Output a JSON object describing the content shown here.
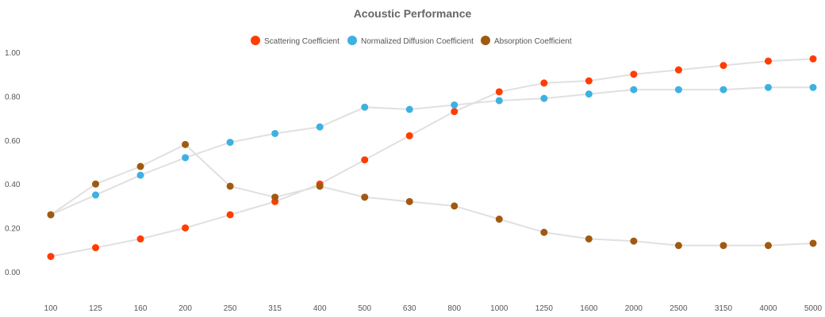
{
  "chart_data": {
    "type": "line",
    "title": "Acoustic Performance",
    "xlabel": "",
    "ylabel": "",
    "categories": [
      "100",
      "125",
      "160",
      "200",
      "250",
      "315",
      "400",
      "500",
      "630",
      "800",
      "1000",
      "1250",
      "1600",
      "2000",
      "2500",
      "3150",
      "4000",
      "5000"
    ],
    "y_ticks": [
      "0.00",
      "0.20",
      "0.40",
      "0.60",
      "0.80",
      "1.00"
    ],
    "ylim": [
      0,
      1.0
    ],
    "grid": false,
    "legend_position": "top",
    "line_color": "#e0e0e0",
    "series": [
      {
        "name": "Scattering Coefficient",
        "color": "#ff3d00",
        "values": [
          0.07,
          0.11,
          0.15,
          0.2,
          0.26,
          0.32,
          0.4,
          0.51,
          0.62,
          0.73,
          0.82,
          0.86,
          0.87,
          0.9,
          0.92,
          0.94,
          0.96,
          0.97
        ]
      },
      {
        "name": "Normalized Diffusion Coefficient",
        "color": "#3db1e2",
        "values": [
          0.26,
          0.35,
          0.44,
          0.52,
          0.59,
          0.63,
          0.66,
          0.75,
          0.74,
          0.76,
          0.78,
          0.79,
          0.81,
          0.83,
          0.83,
          0.83,
          0.84,
          0.84
        ]
      },
      {
        "name": "Absorption Coefficient",
        "color": "#a05a10",
        "values": [
          0.26,
          0.4,
          0.48,
          0.58,
          0.39,
          0.34,
          0.39,
          0.34,
          0.32,
          0.3,
          0.24,
          0.18,
          0.15,
          0.14,
          0.12,
          0.12,
          0.12,
          0.13
        ]
      }
    ]
  }
}
